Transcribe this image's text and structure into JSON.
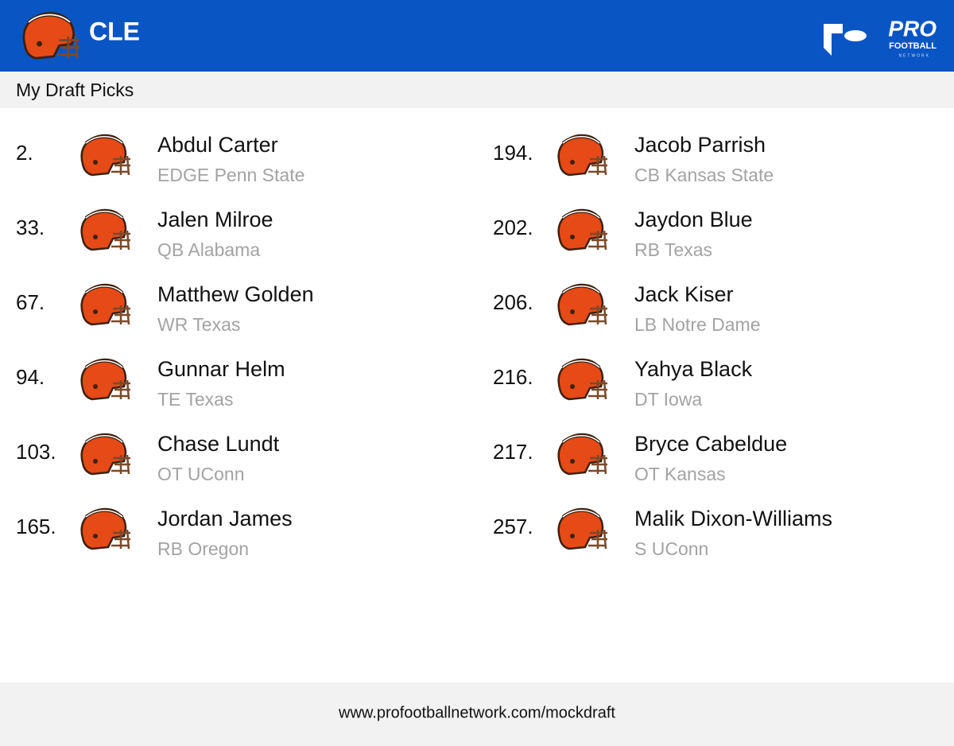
{
  "header": {
    "team": "CLE",
    "logo": {
      "line1": "PRO",
      "line2": "FOOTBALL",
      "line3": "NETWORK"
    }
  },
  "section_title": "My Draft Picks",
  "picks": [
    {
      "pick": "2.",
      "name": "Abdul Carter",
      "detail": "EDGE Penn State"
    },
    {
      "pick": "33.",
      "name": "Jalen Milroe",
      "detail": "QB Alabama"
    },
    {
      "pick": "67.",
      "name": "Matthew Golden",
      "detail": "WR Texas"
    },
    {
      "pick": "94.",
      "name": "Gunnar Helm",
      "detail": "TE Texas"
    },
    {
      "pick": "103.",
      "name": "Chase Lundt",
      "detail": "OT UConn"
    },
    {
      "pick": "165.",
      "name": "Jordan James",
      "detail": "RB Oregon"
    },
    {
      "pick": "194.",
      "name": "Jacob Parrish",
      "detail": "CB Kansas State"
    },
    {
      "pick": "202.",
      "name": "Jaydon Blue",
      "detail": "RB Texas"
    },
    {
      "pick": "206.",
      "name": "Jack Kiser",
      "detail": "LB Notre Dame"
    },
    {
      "pick": "216.",
      "name": "Yahya Black",
      "detail": "DT Iowa"
    },
    {
      "pick": "217.",
      "name": "Bryce Cabeldue",
      "detail": "OT Kansas"
    },
    {
      "pick": "257.",
      "name": "Malik Dixon-Williams",
      "detail": "S UConn"
    }
  ],
  "footer": {
    "url": "www.profootballnetwork.com/mockdraft"
  }
}
